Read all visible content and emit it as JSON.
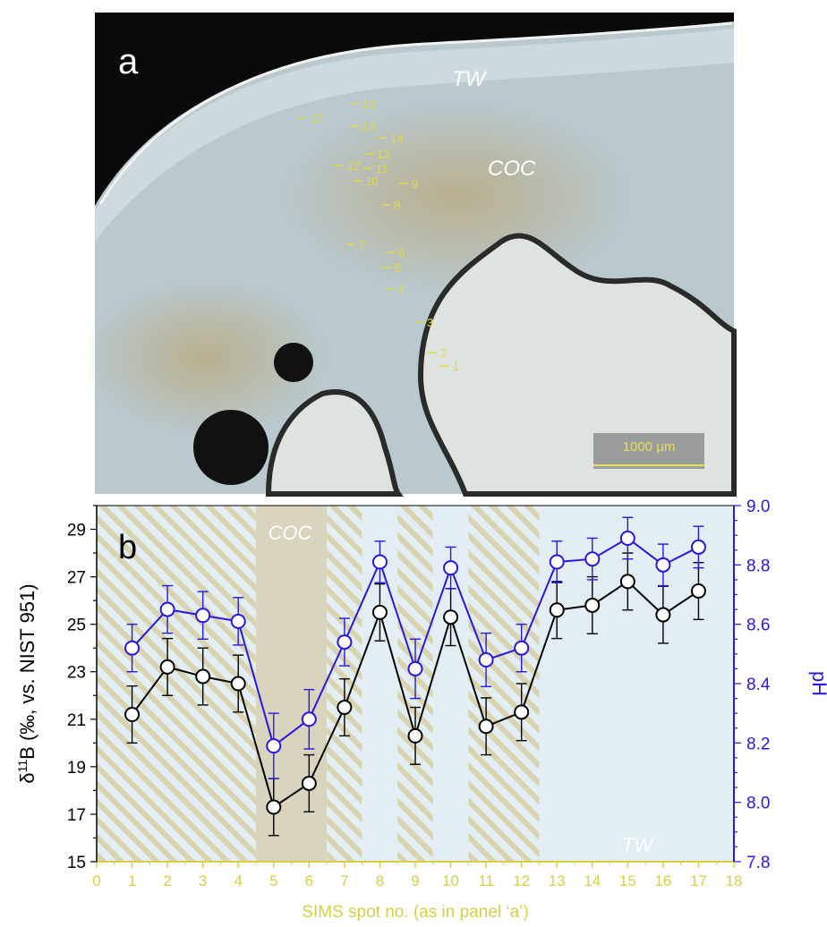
{
  "panel_a": {
    "letter": "a",
    "label_tw": "TW",
    "label_coc": "COC",
    "scale_bar": "1000 µm",
    "spot_labels": [
      "1",
      "2",
      "3",
      "4",
      "5",
      "6",
      "7",
      "8",
      "9",
      "10",
      "11",
      "12",
      "13",
      "14",
      "15",
      "16",
      "17"
    ]
  },
  "colors": {
    "boron": "#000000",
    "ph": "#2a17e0",
    "axis_x": "#d6cf45",
    "tw_fill": "#e2edf4",
    "coc_fill": "#d8d4bd",
    "hatch": "#d8d4b0"
  },
  "chart_data": {
    "type": "line",
    "panel_letter": "b",
    "xlabel": "SIMS spot no. (as in panel ‘a’)",
    "ylabel_left": "δ11B (‰, vs. NIST 951)",
    "ylabel_right": "pH",
    "xlim": [
      0,
      18
    ],
    "ylim_left": [
      15,
      30
    ],
    "ylim_right": [
      7.8,
      9.0
    ],
    "x_ticks": [
      0,
      1,
      2,
      3,
      4,
      5,
      6,
      7,
      8,
      9,
      10,
      11,
      12,
      13,
      14,
      15,
      16,
      17,
      18
    ],
    "y_left_ticks": [
      15,
      17,
      19,
      21,
      23,
      25,
      27,
      29
    ],
    "y_right_ticks": [
      "7.8",
      "8.0",
      "8.2",
      "8.4",
      "8.6",
      "8.8",
      "9.0"
    ],
    "x": [
      1,
      2,
      3,
      4,
      5,
      6,
      7,
      8,
      9,
      10,
      11,
      12,
      13,
      14,
      15,
      16,
      17
    ],
    "series": [
      {
        "axis": "left",
        "values": [
          21.2,
          23.2,
          22.8,
          22.5,
          17.3,
          18.3,
          21.5,
          25.5,
          20.3,
          25.3,
          20.7,
          21.3,
          25.6,
          25.8,
          26.8,
          25.4,
          26.4
        ],
        "errors": [
          1.2,
          1.2,
          1.2,
          1.2,
          1.2,
          1.2,
          1.2,
          1.2,
          1.2,
          1.2,
          1.2,
          1.2,
          1.2,
          1.2,
          1.2,
          1.2,
          1.2
        ]
      },
      {
        "axis": "right",
        "values": [
          8.52,
          8.65,
          8.63,
          8.61,
          8.19,
          8.28,
          8.54,
          8.81,
          8.45,
          8.79,
          8.48,
          8.52,
          8.81,
          8.82,
          8.89,
          8.8,
          8.86
        ],
        "errors": [
          0.08,
          0.08,
          0.08,
          0.08,
          0.11,
          0.1,
          0.08,
          0.07,
          0.1,
          0.07,
          0.09,
          0.08,
          0.07,
          0.07,
          0.07,
          0.07,
          0.07
        ]
      }
    ],
    "zones": [
      {
        "from": 0,
        "to": 4.5,
        "style": "hatched"
      },
      {
        "from": 4.5,
        "to": 6.5,
        "style": "coc"
      },
      {
        "from": 6.5,
        "to": 7.5,
        "style": "hatched"
      },
      {
        "from": 7.5,
        "to": 8.5,
        "style": "tw"
      },
      {
        "from": 8.5,
        "to": 9.5,
        "style": "hatched"
      },
      {
        "from": 9.5,
        "to": 10.5,
        "style": "tw"
      },
      {
        "from": 10.5,
        "to": 12.5,
        "style": "hatched"
      },
      {
        "from": 12.5,
        "to": 18,
        "style": "tw"
      }
    ],
    "annotations": {
      "coc": "COC",
      "tw": "TW"
    }
  }
}
